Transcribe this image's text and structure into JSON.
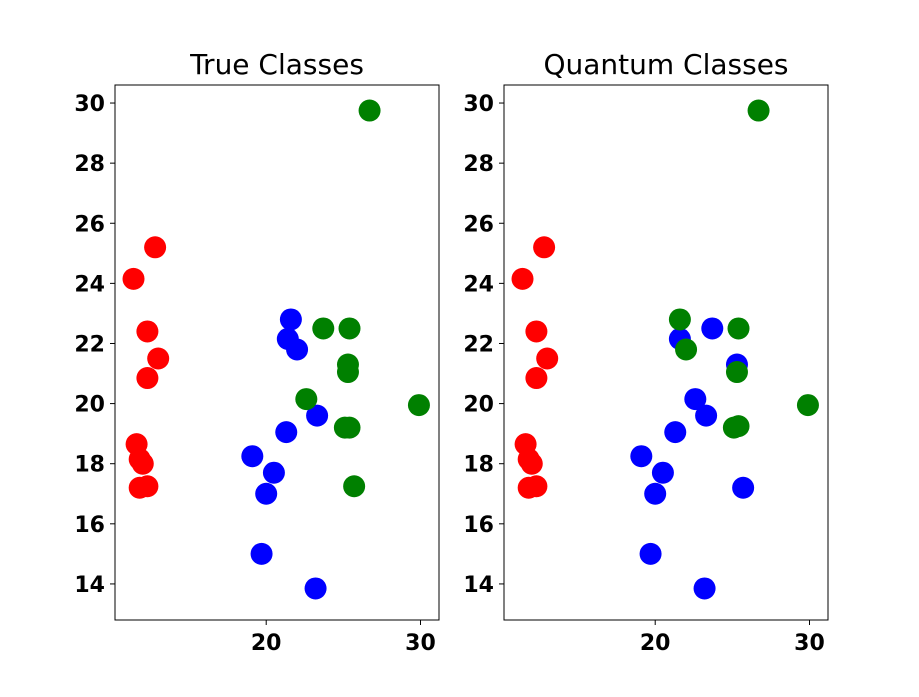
{
  "chart_data": [
    {
      "type": "scatter",
      "title": "True Classes",
      "xlabel": "",
      "ylabel": "",
      "xlim": [
        10.2,
        31.2
      ],
      "ylim": [
        12.8,
        30.6
      ],
      "xticks": [
        20,
        30
      ],
      "yticks": [
        14,
        16,
        18,
        20,
        22,
        24,
        26,
        28,
        30
      ],
      "grid": false,
      "series": [
        {
          "color": "#ff0000",
          "points": [
            [
              11.4,
              24.15
            ],
            [
              12.8,
              25.2
            ],
            [
              12.3,
              22.4
            ],
            [
              13.0,
              21.5
            ],
            [
              12.3,
              20.85
            ],
            [
              11.6,
              18.65
            ],
            [
              11.8,
              18.15
            ],
            [
              12.0,
              18.0
            ],
            [
              11.8,
              17.2
            ],
            [
              12.3,
              17.25
            ]
          ]
        },
        {
          "color": "#0000ff",
          "points": [
            [
              21.6,
              22.8
            ],
            [
              21.4,
              22.15
            ],
            [
              22.0,
              21.8
            ],
            [
              23.3,
              19.6
            ],
            [
              21.3,
              19.05
            ],
            [
              19.1,
              18.25
            ],
            [
              20.5,
              17.7
            ],
            [
              20.0,
              17.0
            ],
            [
              19.7,
              15.0
            ],
            [
              23.2,
              13.85
            ]
          ]
        },
        {
          "color": "#008000",
          "points": [
            [
              26.7,
              29.75
            ],
            [
              23.7,
              22.5
            ],
            [
              25.4,
              22.5
            ],
            [
              25.3,
              21.3
            ],
            [
              25.3,
              21.05
            ],
            [
              22.6,
              20.15
            ],
            [
              29.9,
              19.95
            ],
            [
              25.1,
              19.2
            ],
            [
              25.4,
              19.2
            ],
            [
              25.7,
              17.25
            ]
          ]
        }
      ]
    },
    {
      "type": "scatter",
      "title": "Quantum Classes",
      "xlabel": "",
      "ylabel": "",
      "xlim": [
        10.2,
        31.2
      ],
      "ylim": [
        12.8,
        30.6
      ],
      "xticks": [
        20,
        30
      ],
      "yticks": [
        14,
        16,
        18,
        20,
        22,
        24,
        26,
        28,
        30
      ],
      "grid": false,
      "series": [
        {
          "color": "#ff0000",
          "points": [
            [
              11.4,
              24.15
            ],
            [
              12.8,
              25.2
            ],
            [
              12.3,
              22.4
            ],
            [
              13.0,
              21.5
            ],
            [
              12.3,
              20.85
            ],
            [
              11.6,
              18.65
            ],
            [
              11.8,
              18.15
            ],
            [
              12.0,
              18.0
            ],
            [
              11.8,
              17.2
            ],
            [
              12.3,
              17.25
            ]
          ]
        },
        {
          "color": "#0000ff",
          "points": [
            [
              21.6,
              22.15
            ],
            [
              23.7,
              22.5
            ],
            [
              25.3,
              21.3
            ],
            [
              22.6,
              20.15
            ],
            [
              23.3,
              19.6
            ],
            [
              21.3,
              19.05
            ],
            [
              19.1,
              18.25
            ],
            [
              20.5,
              17.7
            ],
            [
              20.0,
              17.0
            ],
            [
              25.7,
              17.2
            ],
            [
              19.7,
              15.0
            ],
            [
              23.2,
              13.85
            ]
          ]
        },
        {
          "color": "#008000",
          "points": [
            [
              26.7,
              29.75
            ],
            [
              21.6,
              22.8
            ],
            [
              25.4,
              22.5
            ],
            [
              22.0,
              21.8
            ],
            [
              25.3,
              21.05
            ],
            [
              29.9,
              19.95
            ],
            [
              25.1,
              19.2
            ],
            [
              25.4,
              19.25
            ]
          ]
        }
      ]
    }
  ]
}
